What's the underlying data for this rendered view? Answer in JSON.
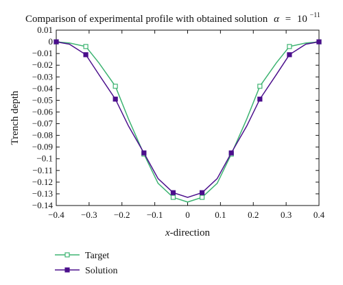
{
  "chart_data": {
    "type": "line",
    "title": "Comparison of experimental profile with obtained solution",
    "title_math": {
      "symbol": "α",
      "equals": "=",
      "base": "10",
      "exponent": "−11"
    },
    "xlabel_italic": "x",
    "xlabel_rest": "-direction",
    "ylabel": "Trench depth",
    "xlim": [
      -0.4,
      0.4
    ],
    "ylim": [
      -0.14,
      0.01
    ],
    "x_ticks": [
      -0.4,
      -0.3,
      -0.2,
      -0.1,
      0,
      0.1,
      0.2,
      0.3,
      0.4
    ],
    "x_tick_labels": [
      "−0.4",
      "−0.3",
      "−0.2",
      "−0.1",
      "0",
      "0.1",
      "0.2",
      "0.3",
      "0.4"
    ],
    "y_ticks": [
      0.01,
      0,
      -0.01,
      -0.02,
      -0.03,
      -0.04,
      -0.05,
      -0.06,
      -0.07,
      -0.08,
      -0.09,
      -0.1,
      -0.11,
      -0.12,
      -0.13,
      -0.14
    ],
    "y_tick_labels": [
      "0.01",
      "0",
      "−0.01",
      "−0.02",
      "−0.03",
      "−0.04",
      "−0.05",
      "−0.06",
      "−0.07",
      "−0.08",
      "−0.09",
      "−0.1",
      "−0.11",
      "−0.12",
      "−0.13",
      "−0.14"
    ],
    "grid": false,
    "legend_position": "bottom-left, below the plot",
    "series": [
      {
        "name": "Target",
        "color": "#3cb371",
        "marker": "open-square",
        "x": [
          -0.4,
          -0.36,
          -0.31,
          -0.27,
          -0.22,
          -0.18,
          -0.133,
          -0.09,
          -0.044,
          0,
          0.044,
          0.09,
          0.133,
          0.18,
          0.22,
          0.27,
          0.31,
          0.36,
          0.4
        ],
        "y": [
          0,
          -0.001,
          -0.004,
          -0.018,
          -0.038,
          -0.066,
          -0.096,
          -0.121,
          -0.133,
          -0.137,
          -0.133,
          -0.121,
          -0.096,
          -0.066,
          -0.038,
          -0.018,
          -0.004,
          -0.001,
          0
        ],
        "marker_x": [
          -0.4,
          -0.31,
          -0.22,
          -0.133,
          -0.044,
          0.044,
          0.133,
          0.22,
          0.31,
          0.4
        ],
        "marker_y": [
          0,
          -0.004,
          -0.038,
          -0.096,
          -0.133,
          -0.133,
          -0.096,
          -0.038,
          -0.004,
          0
        ]
      },
      {
        "name": "Solution",
        "color": "#4b0f8c",
        "marker": "filled-square",
        "x": [
          -0.4,
          -0.36,
          -0.31,
          -0.27,
          -0.22,
          -0.18,
          -0.133,
          -0.09,
          -0.044,
          0,
          0.044,
          0.09,
          0.133,
          0.18,
          0.22,
          0.27,
          0.31,
          0.36,
          0.4
        ],
        "y": [
          0,
          -0.002,
          -0.011,
          -0.028,
          -0.049,
          -0.072,
          -0.095,
          -0.117,
          -0.129,
          -0.133,
          -0.129,
          -0.117,
          -0.095,
          -0.072,
          -0.049,
          -0.028,
          -0.011,
          -0.002,
          0
        ],
        "marker_x": [
          -0.4,
          -0.31,
          -0.22,
          -0.133,
          -0.044,
          0.044,
          0.133,
          0.22,
          0.31,
          0.4
        ],
        "marker_y": [
          0,
          -0.011,
          -0.049,
          -0.095,
          -0.129,
          -0.129,
          -0.095,
          -0.049,
          -0.011,
          0
        ]
      }
    ]
  }
}
